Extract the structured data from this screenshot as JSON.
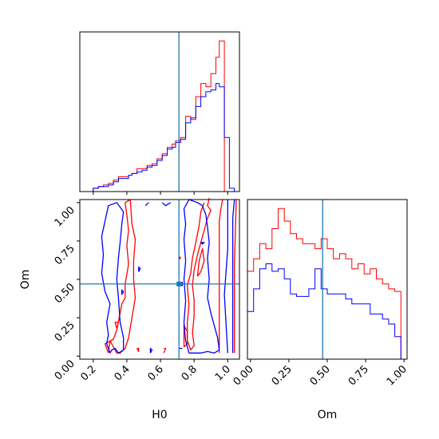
{
  "chart_data": {
    "type": "corner",
    "parameters": [
      "H0",
      "Om"
    ],
    "truth": {
      "H0": 0.71,
      "Om": 0.47
    },
    "truth_color": "#1f77b4",
    "series_colors": {
      "red": "#ff0000",
      "blue": "#0000ff"
    },
    "axes": {
      "H0": {
        "label": "H0",
        "lim": [
          0.12,
          1.07
        ],
        "ticks": [
          0.2,
          0.4,
          0.6,
          0.8,
          1.0
        ],
        "tick_labels": [
          "0.2",
          "0.4",
          "0.6",
          "0.8",
          "1.0"
        ]
      },
      "Om": {
        "label": "Om",
        "lim": [
          -0.02,
          1.02
        ],
        "ticks": [
          0.0,
          0.25,
          0.5,
          0.75,
          1.0
        ],
        "tick_labels": [
          "0.00",
          "0.25",
          "0.50",
          "0.75",
          "1.00"
        ]
      }
    },
    "hist_H0": {
      "edges": [
        0.12,
        0.15,
        0.17,
        0.2,
        0.23,
        0.26,
        0.29,
        0.32,
        0.35,
        0.38,
        0.41,
        0.43,
        0.46,
        0.49,
        0.52,
        0.55,
        0.58,
        0.61,
        0.64,
        0.67,
        0.69,
        0.72,
        0.75,
        0.78,
        0.81,
        0.84,
        0.87,
        0.9,
        0.93,
        0.95,
        0.98,
        1.01,
        1.04,
        1.07
      ],
      "red": [
        0,
        0,
        0,
        2,
        3,
        4,
        5,
        7,
        9,
        9,
        10,
        11,
        14,
        14,
        16,
        17,
        20,
        23,
        27,
        29,
        31,
        33,
        46,
        44,
        58,
        66,
        64,
        72,
        82,
        92,
        0,
        0,
        0
      ],
      "blue": [
        0,
        0,
        0,
        2,
        3,
        3,
        4,
        6,
        8,
        8,
        10,
        11,
        12,
        13,
        15,
        16,
        19,
        22,
        26,
        27,
        30,
        32,
        42,
        45,
        52,
        58,
        61,
        62,
        66,
        64,
        33,
        2,
        0
      ]
    },
    "hist_Om": {
      "edges": [
        -0.02,
        0.02,
        0.06,
        0.1,
        0.14,
        0.18,
        0.22,
        0.26,
        0.3,
        0.34,
        0.38,
        0.42,
        0.46,
        0.5,
        0.54,
        0.58,
        0.62,
        0.66,
        0.7,
        0.74,
        0.78,
        0.82,
        0.86,
        0.9,
        0.94,
        0.98,
        1.02
      ],
      "red": [
        35,
        40,
        46,
        44,
        52,
        60,
        55,
        50,
        48,
        46,
        46,
        44,
        48,
        44,
        40,
        42,
        40,
        36,
        38,
        34,
        36,
        32,
        30,
        28,
        27,
        0
      ],
      "blue": [
        19,
        28,
        36,
        38,
        35,
        36,
        32,
        26,
        25,
        25,
        28,
        36,
        28,
        26,
        26,
        26,
        24,
        22,
        22,
        22,
        18,
        18,
        16,
        14,
        9,
        0
      ]
    },
    "contours": {
      "red": [
        [
          [
            0.29,
            0.02
          ],
          [
            0.27,
            0.08
          ],
          [
            0.32,
            0.11
          ],
          [
            0.34,
            0.17
          ],
          [
            0.36,
            0.28
          ],
          [
            0.37,
            0.34
          ],
          [
            0.39,
            0.38
          ],
          [
            0.39,
            0.47
          ],
          [
            0.41,
            0.6
          ],
          [
            0.4,
            0.72
          ],
          [
            0.41,
            0.82
          ],
          [
            0.4,
            0.92
          ],
          [
            0.39,
            1.0
          ],
          [
            0.42,
            1.02
          ],
          [
            0.43,
            0.86
          ],
          [
            0.45,
            0.76
          ],
          [
            0.44,
            0.62
          ],
          [
            0.44,
            0.5
          ],
          [
            0.45,
            0.38
          ],
          [
            0.43,
            0.25
          ],
          [
            0.41,
            0.12
          ],
          [
            0.39,
            0.05
          ],
          [
            0.36,
            0.02
          ],
          [
            0.34,
            0.02
          ],
          [
            0.32,
            0.06
          ],
          [
            0.3,
            0.1
          ],
          [
            0.29,
            0.02
          ]
        ],
        [
          [
            0.89,
            1.03
          ],
          [
            0.88,
            0.98
          ],
          [
            0.9,
            0.95
          ],
          [
            0.88,
            0.9
          ],
          [
            0.86,
            0.82
          ],
          [
            0.84,
            0.74
          ],
          [
            0.82,
            0.66
          ],
          [
            0.8,
            0.56
          ],
          [
            0.79,
            0.46
          ],
          [
            0.8,
            0.37
          ],
          [
            0.8,
            0.26
          ],
          [
            0.79,
            0.15
          ],
          [
            0.8,
            0.07
          ],
          [
            0.78,
            0.04
          ],
          [
            0.76,
            0.1
          ],
          [
            0.76,
            0.22
          ],
          [
            0.77,
            0.33
          ],
          [
            0.76,
            0.46
          ],
          [
            0.78,
            0.54
          ],
          [
            0.79,
            0.64
          ],
          [
            0.81,
            0.74
          ],
          [
            0.83,
            0.85
          ],
          [
            0.84,
            0.94
          ],
          [
            0.86,
            1.0
          ]
        ],
        [
          [
            0.82,
            0.52
          ],
          [
            0.83,
            0.62
          ],
          [
            0.85,
            0.7
          ],
          [
            0.86,
            0.62
          ],
          [
            0.84,
            0.55
          ],
          [
            0.82,
            0.52
          ]
        ],
        [
          [
            0.74,
            0.06
          ],
          [
            0.76,
            0.08
          ],
          [
            0.76,
            0.16
          ],
          [
            0.74,
            0.2
          ],
          [
            0.74,
            0.12
          ],
          [
            0.74,
            0.06
          ]
        ],
        [
          [
            0.34,
            0.18
          ],
          [
            0.35,
            0.22
          ],
          [
            0.33,
            0.22
          ],
          [
            0.34,
            0.18
          ]
        ],
        [
          [
            0.46,
            0.05
          ],
          [
            0.47,
            0.05
          ],
          [
            0.47,
            0.03
          ],
          [
            0.46,
            0.05
          ]
        ],
        [
          [
            0.62,
            0.02
          ],
          [
            0.63,
            0.05
          ],
          [
            0.62,
            0.05
          ]
        ],
        [
          [
            0.95,
            0.02
          ],
          [
            0.95,
            0.88
          ],
          [
            0.96,
            0.96
          ],
          [
            0.97,
            1.02
          ]
        ],
        [
          [
            1.04,
            0.02
          ],
          [
            1.04,
            0.6
          ],
          [
            1.05,
            0.98
          ],
          [
            1.05,
            1.02
          ]
        ],
        [
          [
            0.71,
            0.65
          ],
          [
            0.72,
            0.64
          ],
          [
            0.71,
            0.63
          ],
          [
            0.71,
            0.65
          ]
        ]
      ],
      "blue": [
        [
          [
            0.3,
            0.02
          ],
          [
            0.28,
            0.08
          ],
          [
            0.29,
            0.14
          ],
          [
            0.28,
            0.22
          ],
          [
            0.3,
            0.34
          ],
          [
            0.27,
            0.42
          ],
          [
            0.25,
            0.54
          ],
          [
            0.26,
            0.66
          ],
          [
            0.25,
            0.78
          ],
          [
            0.27,
            0.88
          ],
          [
            0.29,
            0.98
          ],
          [
            0.34,
            1.0
          ],
          [
            0.38,
            0.94
          ],
          [
            0.37,
            0.86
          ],
          [
            0.36,
            0.74
          ],
          [
            0.35,
            0.64
          ],
          [
            0.34,
            0.5
          ],
          [
            0.35,
            0.38
          ],
          [
            0.36,
            0.22
          ],
          [
            0.38,
            0.12
          ],
          [
            0.38,
            0.04
          ],
          [
            0.35,
            0.02
          ],
          [
            0.33,
            0.05
          ],
          [
            0.31,
            0.04
          ],
          [
            0.3,
            0.02
          ]
        ],
        [
          [
            0.77,
            0.02
          ],
          [
            0.75,
            0.1
          ],
          [
            0.74,
            0.22
          ],
          [
            0.75,
            0.36
          ],
          [
            0.74,
            0.5
          ],
          [
            0.75,
            0.62
          ],
          [
            0.74,
            0.76
          ],
          [
            0.75,
            0.86
          ],
          [
            0.74,
            0.96
          ],
          [
            0.77,
            1.02
          ],
          [
            0.82,
            1.0
          ],
          [
            0.85,
            0.98
          ],
          [
            0.87,
            0.92
          ],
          [
            0.88,
            0.84
          ],
          [
            0.89,
            0.74
          ],
          [
            0.88,
            0.64
          ],
          [
            0.89,
            0.5
          ],
          [
            0.88,
            0.38
          ],
          [
            0.9,
            0.28
          ],
          [
            0.92,
            0.2
          ],
          [
            0.94,
            0.12
          ],
          [
            0.95,
            0.04
          ],
          [
            0.92,
            0.02
          ],
          [
            0.88,
            0.03
          ],
          [
            0.84,
            0.02
          ],
          [
            0.8,
            0.02
          ],
          [
            0.77,
            0.02
          ]
        ],
        [
          [
            0.84,
            0.74
          ],
          [
            0.86,
            0.74
          ],
          [
            0.85,
            0.73
          ],
          [
            0.84,
            0.74
          ]
        ],
        [
          [
            0.37,
            0.4
          ],
          [
            0.38,
            0.42
          ],
          [
            0.37,
            0.43
          ],
          [
            0.37,
            0.4
          ]
        ],
        [
          [
            0.47,
            0.55
          ],
          [
            0.48,
            0.57
          ],
          [
            0.47,
            0.58
          ],
          [
            0.47,
            0.55
          ]
        ],
        [
          [
            0.54,
            0.02
          ],
          [
            0.55,
            0.04
          ],
          [
            0.54,
            0.05
          ],
          [
            0.54,
            0.02
          ]
        ],
        [
          [
            0.7,
            0.48
          ],
          [
            0.73,
            0.48
          ],
          [
            0.73,
            0.46
          ],
          [
            0.7,
            0.46
          ],
          [
            0.7,
            0.48
          ]
        ],
        [
          [
            0.71,
            0.05
          ],
          [
            0.73,
            0.05
          ]
        ],
        [
          [
            0.51,
            0.98
          ],
          [
            0.53,
            1.0
          ]
        ],
        [
          [
            0.61,
            1.0
          ],
          [
            0.63,
            0.98
          ],
          [
            0.66,
            1.0
          ]
        ],
        [
          [
            1.03,
            0.02
          ],
          [
            1.03,
            0.9
          ],
          [
            1.04,
            1.02
          ]
        ],
        [
          [
            1.0,
            0.02
          ],
          [
            0.98,
            0.4
          ],
          [
            1.0,
            0.7
          ],
          [
            1.0,
            1.02
          ]
        ]
      ]
    }
  }
}
